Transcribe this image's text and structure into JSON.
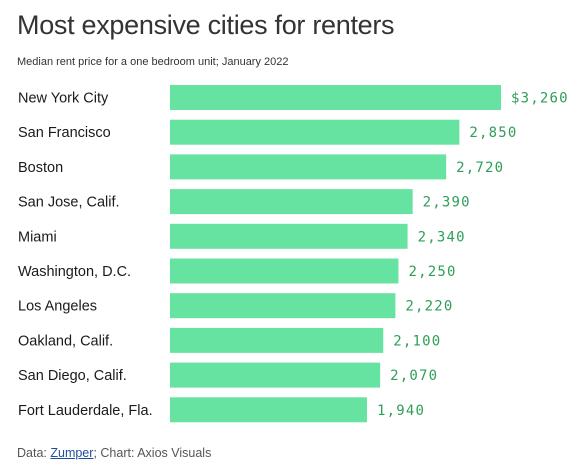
{
  "chart_data": {
    "type": "bar",
    "orientation": "horizontal",
    "title": "Most expensive cities for renters",
    "subtitle": "Median rent price for a one bedroom unit; January 2022",
    "categories": [
      "New York City",
      "San Francisco",
      "Boston",
      "San Jose, Calif.",
      "Miami",
      "Washington, D.C.",
      "Los Angeles",
      "Oakland, Calif.",
      "San Diego, Calif.",
      "Fort Lauderdale, Fla."
    ],
    "values": [
      3260,
      2850,
      2720,
      2390,
      2340,
      2250,
      2220,
      2100,
      2070,
      1940
    ],
    "value_labels": [
      "$3,260",
      "2,850",
      "2,720",
      "2,390",
      "2,340",
      "2,250",
      "2,220",
      "2,100",
      "2,070",
      "1,940"
    ],
    "xlim": [
      0,
      3260
    ],
    "grid": false,
    "bar_color": "#67e3a1",
    "value_label_color": "#2e9e58"
  },
  "footer": {
    "prefix": "Data: ",
    "source": "Zumper",
    "suffix": "; Chart: Axios Visuals"
  }
}
